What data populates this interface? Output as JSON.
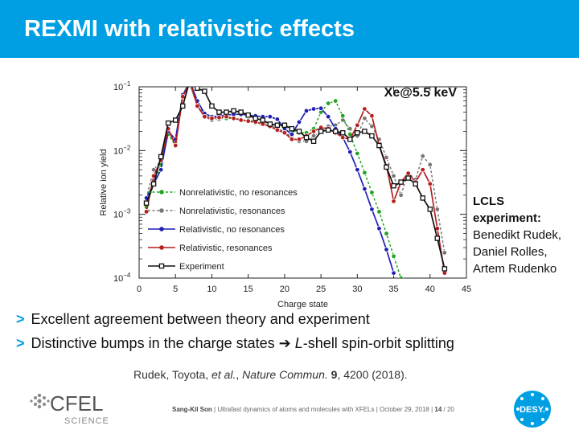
{
  "slide": {
    "title": "REXMI with relativistic effects",
    "side_note": {
      "heading_line1": "LCLS",
      "heading_line2": "experiment:",
      "names": [
        "Benedikt Rudek,",
        "Daniel Rolles,",
        "Artem Rudenko"
      ]
    },
    "bullets": [
      {
        "marker": ">",
        "text": "Excellent agreement between theory and experiment"
      },
      {
        "marker": ">",
        "pre": "Distinctive bumps in the charge states ",
        "arrow": "➔",
        "em": "L",
        "post": "-shell spin-orbit splitting"
      }
    ],
    "reference": {
      "authors": "Rudek, Toyota, ",
      "etal": "et al.",
      "sep": ", ",
      "journal": "Nature Commun.",
      "volume": "9",
      "rest": ", 4200 (2018)."
    },
    "footer": {
      "author": "Sang-Kil Son",
      "sep": "  |  ",
      "talk": "Ultrafast dynamics of atoms and molecules with XFELs",
      "date": "October 29, 2018",
      "page": "14",
      "total": "/ 20"
    },
    "logos": {
      "cfel": "CFEL",
      "cfel_sub": "SCIENCE",
      "desy": "DESY."
    }
  },
  "chart_data": {
    "type": "line",
    "annotation": "Xe@5.5 keV",
    "xlabel": "Charge state",
    "ylabel": "Relative ion yield",
    "xlim": [
      0,
      45
    ],
    "ylim": [
      0.0001,
      0.1
    ],
    "yscale": "log",
    "xticks": [
      0,
      5,
      10,
      15,
      20,
      25,
      30,
      35,
      40,
      45
    ],
    "yticks": [
      {
        "value": 0.1,
        "base": "10",
        "exp": "−1"
      },
      {
        "value": 0.01,
        "base": "10",
        "exp": "−2"
      },
      {
        "value": 0.001,
        "base": "10",
        "exp": "−3"
      },
      {
        "value": 0.0001,
        "base": "10",
        "exp": "−4"
      }
    ],
    "legend_position": "center-left",
    "series": [
      {
        "name": "Nonrelativistic, no resonances",
        "color": "#1fa51f",
        "dashed": true,
        "marker": "circle",
        "points": [
          [
            1,
            0.0013
          ],
          [
            2,
            0.003
          ],
          [
            3,
            0.006
          ],
          [
            4,
            0.018
          ],
          [
            5,
            0.012
          ],
          [
            6,
            0.07
          ],
          [
            7,
            0.11
          ],
          [
            8,
            0.05
          ],
          [
            9,
            0.038
          ],
          [
            10,
            0.033
          ],
          [
            11,
            0.033
          ],
          [
            12,
            0.032
          ],
          [
            13,
            0.032
          ],
          [
            14,
            0.03
          ],
          [
            15,
            0.03
          ],
          [
            16,
            0.028
          ],
          [
            17,
            0.027
          ],
          [
            18,
            0.026
          ],
          [
            19,
            0.025
          ],
          [
            20,
            0.024
          ],
          [
            21,
            0.021
          ],
          [
            22,
            0.019
          ],
          [
            23,
            0.019
          ],
          [
            24,
            0.022
          ],
          [
            25,
            0.04
          ],
          [
            26,
            0.055
          ],
          [
            27,
            0.06
          ],
          [
            28,
            0.035
          ],
          [
            29,
            0.018
          ],
          [
            30,
            0.009
          ],
          [
            31,
            0.0045
          ],
          [
            32,
            0.0022
          ],
          [
            33,
            0.0011
          ],
          [
            34,
            0.0005
          ],
          [
            35,
            0.00022
          ],
          [
            36,
            0.0001
          ]
        ]
      },
      {
        "name": "Nonrelativistic, resonances",
        "color": "#777777",
        "dashed": true,
        "marker": "circle",
        "points": [
          [
            1,
            0.0018
          ],
          [
            2,
            0.005
          ],
          [
            3,
            0.007
          ],
          [
            4,
            0.02
          ],
          [
            5,
            0.013
          ],
          [
            6,
            0.07
          ],
          [
            7,
            0.11
          ],
          [
            8,
            0.05
          ],
          [
            9,
            0.034
          ],
          [
            10,
            0.03
          ],
          [
            11,
            0.031
          ],
          [
            12,
            0.033
          ],
          [
            13,
            0.033
          ],
          [
            14,
            0.031
          ],
          [
            15,
            0.029
          ],
          [
            16,
            0.027
          ],
          [
            17,
            0.026
          ],
          [
            18,
            0.025
          ],
          [
            19,
            0.022
          ],
          [
            20,
            0.02
          ],
          [
            21,
            0.016
          ],
          [
            22,
            0.014
          ],
          [
            23,
            0.014
          ],
          [
            24,
            0.017
          ],
          [
            25,
            0.02
          ],
          [
            26,
            0.024
          ],
          [
            27,
            0.025
          ],
          [
            28,
            0.03
          ],
          [
            29,
            0.022
          ],
          [
            30,
            0.017
          ],
          [
            31,
            0.032
          ],
          [
            32,
            0.024
          ],
          [
            33,
            0.015
          ],
          [
            34,
            0.0078
          ],
          [
            35,
            0.004
          ],
          [
            36,
            0.002
          ],
          [
            37,
            0.0045
          ],
          [
            38,
            0.0035
          ],
          [
            39,
            0.0082
          ],
          [
            40,
            0.006
          ],
          [
            41,
            0.0012
          ],
          [
            42,
            0.00025
          ]
        ]
      },
      {
        "name": "Relativistic, no resonances",
        "color": "#1f1fb4",
        "dashed": false,
        "marker": "circle",
        "points": [
          [
            1,
            0.0018
          ],
          [
            2,
            0.003
          ],
          [
            3,
            0.005
          ],
          [
            4,
            0.02
          ],
          [
            5,
            0.015
          ],
          [
            6,
            0.075
          ],
          [
            7,
            0.12
          ],
          [
            8,
            0.06
          ],
          [
            9,
            0.038
          ],
          [
            10,
            0.034
          ],
          [
            11,
            0.035
          ],
          [
            12,
            0.036
          ],
          [
            13,
            0.037
          ],
          [
            14,
            0.037
          ],
          [
            15,
            0.036
          ],
          [
            16,
            0.035
          ],
          [
            17,
            0.034
          ],
          [
            18,
            0.034
          ],
          [
            19,
            0.031
          ],
          [
            20,
            0.022
          ],
          [
            21,
            0.018
          ],
          [
            22,
            0.028
          ],
          [
            23,
            0.042
          ],
          [
            24,
            0.045
          ],
          [
            25,
            0.046
          ],
          [
            26,
            0.034
          ],
          [
            27,
            0.022
          ],
          [
            28,
            0.016
          ],
          [
            29,
            0.0095
          ],
          [
            30,
            0.005
          ],
          [
            31,
            0.0025
          ],
          [
            32,
            0.0012
          ],
          [
            33,
            0.0006
          ],
          [
            34,
            0.00028
          ],
          [
            35,
            0.00012
          ]
        ]
      },
      {
        "name": "Relativistic, resonances",
        "color": "#b41f1f",
        "dashed": false,
        "marker": "circle",
        "points": [
          [
            1,
            0.0011
          ],
          [
            2,
            0.004
          ],
          [
            3,
            0.007
          ],
          [
            4,
            0.022
          ],
          [
            5,
            0.012
          ],
          [
            6,
            0.07
          ],
          [
            7,
            0.12
          ],
          [
            8,
            0.05
          ],
          [
            9,
            0.034
          ],
          [
            10,
            0.032
          ],
          [
            11,
            0.033
          ],
          [
            12,
            0.034
          ],
          [
            13,
            0.032
          ],
          [
            14,
            0.03
          ],
          [
            15,
            0.029
          ],
          [
            16,
            0.028
          ],
          [
            17,
            0.026
          ],
          [
            18,
            0.024
          ],
          [
            19,
            0.021
          ],
          [
            20,
            0.019
          ],
          [
            21,
            0.015
          ],
          [
            22,
            0.015
          ],
          [
            23,
            0.017
          ],
          [
            24,
            0.02
          ],
          [
            25,
            0.023
          ],
          [
            26,
            0.022
          ],
          [
            27,
            0.019
          ],
          [
            28,
            0.016
          ],
          [
            29,
            0.015
          ],
          [
            30,
            0.025
          ],
          [
            31,
            0.045
          ],
          [
            32,
            0.035
          ],
          [
            33,
            0.012
          ],
          [
            34,
            0.0058
          ],
          [
            35,
            0.0016
          ],
          [
            36,
            0.0032
          ],
          [
            37,
            0.0044
          ],
          [
            38,
            0.0032
          ],
          [
            39,
            0.005
          ],
          [
            40,
            0.003
          ],
          [
            41,
            0.0006
          ],
          [
            42,
            0.00012
          ]
        ]
      },
      {
        "name": "Experiment",
        "color": "#111111",
        "dashed": false,
        "marker": "square",
        "points": [
          [
            1,
            0.0015
          ],
          [
            2,
            0.003
          ],
          [
            3,
            0.008
          ],
          [
            4,
            0.027
          ],
          [
            5,
            0.03
          ],
          [
            6,
            0.05
          ],
          [
            7,
            0.13
          ],
          [
            8,
            0.095
          ],
          [
            9,
            0.085
          ],
          [
            10,
            0.05
          ],
          [
            11,
            0.04
          ],
          [
            12,
            0.04
          ],
          [
            13,
            0.042
          ],
          [
            14,
            0.04
          ],
          [
            15,
            0.036
          ],
          [
            16,
            0.032
          ],
          [
            17,
            0.03
          ],
          [
            18,
            0.026
          ],
          [
            19,
            0.025
          ],
          [
            20,
            0.025
          ],
          [
            21,
            0.022
          ],
          [
            22,
            0.02
          ],
          [
            23,
            0.016
          ],
          [
            24,
            0.014
          ],
          [
            25,
            0.02
          ],
          [
            26,
            0.021
          ],
          [
            27,
            0.02
          ],
          [
            28,
            0.019
          ],
          [
            29,
            0.015
          ],
          [
            30,
            0.019
          ],
          [
            31,
            0.02
          ],
          [
            32,
            0.017
          ],
          [
            33,
            0.012
          ],
          [
            34,
            0.0055
          ],
          [
            35,
            0.0028
          ],
          [
            36,
            0.0032
          ],
          [
            37,
            0.0037
          ],
          [
            38,
            0.003
          ],
          [
            39,
            0.0018
          ],
          [
            40,
            0.0012
          ],
          [
            41,
            0.00042
          ],
          [
            42,
            0.00014
          ]
        ]
      }
    ]
  }
}
